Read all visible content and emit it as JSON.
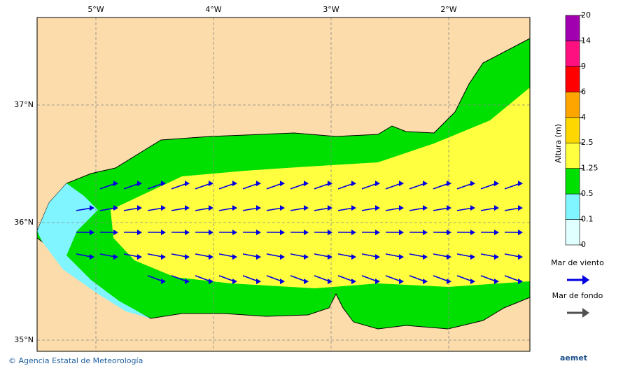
{
  "map": {
    "lon_labels": [
      "5°W",
      "4°W",
      "3°W",
      "2°W"
    ],
    "lat_labels": [
      "37°N",
      "36°N",
      "35°N"
    ],
    "colorbar": {
      "title": "Altura (m)",
      "ticks": [
        "0",
        "0.1",
        "0.5",
        "1.25",
        "2.5",
        "4",
        "6",
        "9",
        "14",
        "20"
      ],
      "colors": [
        "#e0ffff",
        "#80f4ff",
        "#00e000",
        "#ffff40",
        "#ffd700",
        "#ffa500",
        "#ff0000",
        "#ff1080",
        "#a000b0"
      ]
    },
    "legend": [
      {
        "label": "Mar de viento",
        "color": "#0000e0"
      },
      {
        "label": "Mar de fondo",
        "color": "#505050"
      }
    ],
    "footer": "© Agencia Estatal de Meteorología",
    "logo": "aemet"
  }
}
